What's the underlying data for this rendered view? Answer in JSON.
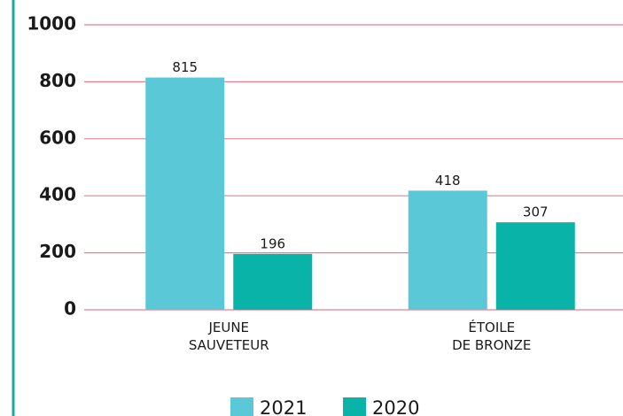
{
  "chart_data": {
    "type": "bar",
    "categories": [
      "JEUNE\nSAUVETEUR",
      "ÉTOILE\nDE BRONZE"
    ],
    "series": [
      {
        "name": "2021",
        "color": "#5bc8d8",
        "values": [
          815,
          418
        ]
      },
      {
        "name": "2020",
        "color": "#0ab3a8",
        "values": [
          196,
          307
        ]
      }
    ],
    "ylim": [
      0,
      1000
    ],
    "yticks": [
      0,
      200,
      400,
      600,
      800,
      1000
    ],
    "grid": true,
    "grid_color": "#e8818f",
    "legend": "bottom"
  }
}
